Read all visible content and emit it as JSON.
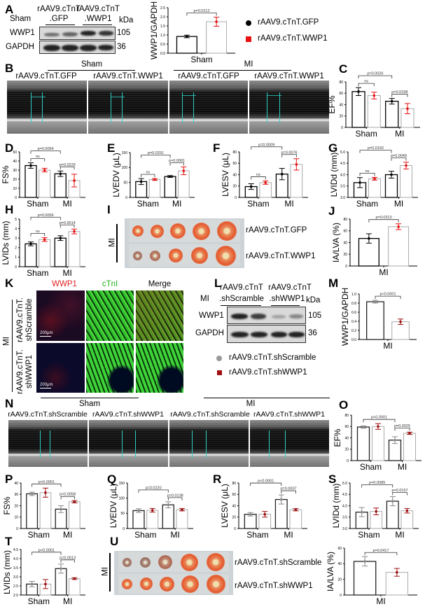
{
  "letters": {
    "A": "A",
    "B": "B",
    "C": "C",
    "D": "D",
    "E": "E",
    "F": "F",
    "G": "G",
    "H": "H",
    "I": "I",
    "J": "J",
    "K": "K",
    "L": "L",
    "M": "M",
    "N": "N",
    "O": "O",
    "P": "P",
    "Q": "Q",
    "R": "R",
    "S": "S",
    "T": "T",
    "U": "U"
  },
  "blotA": {
    "condition": "Sham",
    "groups": [
      {
        "line1": "rAAV9.cTnT",
        "line2": ".GFP"
      },
      {
        "line1": "rAAV9.cTnT",
        "line2": ".WWP1"
      }
    ],
    "unit": "kDa",
    "rows": [
      {
        "protein": "WWP1",
        "kda": "105"
      },
      {
        "protein": "GAPDH",
        "kda": "36"
      }
    ]
  },
  "legend1": {
    "items": [
      {
        "label": "rAAV9.cTnT.GFP",
        "marker": "circle",
        "color": "#000000"
      },
      {
        "label": "rAAV9.cTnT.WWP1",
        "marker": "square",
        "color": "#e81010"
      }
    ]
  },
  "echoB": {
    "groups": [
      "Sham",
      "MI"
    ],
    "labels": [
      "rAAV9.cTnT.GFP",
      "rAAV9.cTnT.WWP1",
      "rAAV9.cTnT.GFP",
      "rAAV9.cTnT.WWP1"
    ]
  },
  "ttcI": {
    "side": "MI",
    "rows": [
      "rAAV9.cTnT.GFP",
      "rAAV9.cTnT.WWP1"
    ]
  },
  "ifK": {
    "columns": [
      "WWP1",
      "cTnI",
      "Merge"
    ],
    "column_colors": [
      "#e02020",
      "#20b020",
      "#000000"
    ],
    "side": "MI",
    "rows": [
      {
        "line1": "rAAV9.cTnT.",
        "line2": "shScramble"
      },
      {
        "line1": "rAAV9.cTnT.",
        "line2": "shWWP1"
      }
    ],
    "scale_bar": "200μm"
  },
  "blotL": {
    "condition": "MI",
    "groups": [
      {
        "line1": "rAAV9.cTnT",
        "line2": ".shScramble"
      },
      {
        "line1": "rAAV9.cTnT",
        "line2": ".shWWP1"
      }
    ],
    "unit": "kDa",
    "rows": [
      {
        "protein": "WWP1",
        "kda": "105"
      },
      {
        "protein": "GAPDH",
        "kda": "36"
      }
    ]
  },
  "legend2": {
    "items": [
      {
        "label": "rAAV9.cTnT.shScramble",
        "marker": "circle",
        "color": "#999999"
      },
      {
        "label": "rAAV9.cTnT.shWWP1",
        "marker": "square",
        "color": "#a01010"
      }
    ]
  },
  "echoN": {
    "groups": [
      "Sham",
      "MI"
    ],
    "labels": [
      "rAAV9.cTnT.shScramble",
      "rAAV9.cTnT.shWWP1",
      "rAAV9.cTnT.shScramble",
      "rAAV9.cTnT.shWWP1"
    ]
  },
  "ttcU": {
    "side": "MI",
    "rows": [
      "rAAV9.cTnT.shScramble",
      "rAAV9.cTnT.shWWP1"
    ]
  },
  "colors": {
    "oe_ctrl": "#000000",
    "oe_treat": "#e81010",
    "kd_ctrl": "#888888",
    "kd_treat": "#a01010",
    "bar_fill": "#ffffff"
  },
  "chart_data": [
    {
      "id": "A",
      "type": "bar",
      "ylabel": "WWP1/GAPDH",
      "ylim": [
        0,
        2.5
      ],
      "yticks": [
        "0.0",
        "0.5",
        "1.0",
        "1.5",
        "2.0",
        "2.5"
      ],
      "categories": [
        "Sham"
      ],
      "series": [
        {
          "name": "rAAV9.cTnT.GFP",
          "values": [
            0.92
          ],
          "sd": [
            0.07
          ]
        },
        {
          "name": "rAAV9.cTnT.WWP1",
          "values": [
            1.73
          ],
          "sd": [
            0.25
          ]
        }
      ],
      "comparisons": [
        {
          "a": 0,
          "b": 1,
          "label": "p=0.0212"
        }
      ]
    },
    {
      "id": "C",
      "type": "bar",
      "ylabel": "EF%",
      "ylim": [
        0,
        80
      ],
      "yticks": [
        "0",
        "20",
        "40",
        "60",
        "80"
      ],
      "categories": [
        "Sham",
        "MI"
      ],
      "series": [
        {
          "name": "rAAV9.cTnT.GFP",
          "values": [
            63,
            46
          ],
          "sd": [
            7,
            5
          ]
        },
        {
          "name": "rAAV9.cTnT.WWP1",
          "values": [
            56,
            33
          ],
          "sd": [
            6,
            9
          ]
        }
      ],
      "comparisons": [
        {
          "a": 0,
          "b": 1,
          "label": "ns"
        },
        {
          "a": 2,
          "b": 3,
          "label": "p=0.0198"
        },
        {
          "a": 0,
          "b": 2,
          "label": "p=0.0026"
        }
      ]
    },
    {
      "id": "D",
      "type": "bar",
      "ylabel": "FS%",
      "ylim": [
        0,
        50
      ],
      "yticks": [
        "0",
        "10",
        "20",
        "30",
        "40",
        "50"
      ],
      "categories": [
        "Sham",
        "MI"
      ],
      "series": [
        {
          "name": "rAAV9.cTnT.GFP",
          "values": [
            35,
            26
          ],
          "sd": [
            3,
            3
          ]
        },
        {
          "name": "rAAV9.cTnT.WWP1",
          "values": [
            30,
            18.5
          ],
          "sd": [
            2,
            7
          ]
        }
      ],
      "comparisons": [
        {
          "a": 0,
          "b": 1,
          "label": "ns"
        },
        {
          "a": 2,
          "b": 3,
          "label": "p=0.0229"
        },
        {
          "a": 0,
          "b": 2,
          "label": "p=0.0054"
        }
      ]
    },
    {
      "id": "E",
      "type": "bar",
      "ylabel": "LVEDV (μL)",
      "ylim": [
        0,
        150
      ],
      "yticks": [
        "0",
        "50",
        "100",
        "150"
      ],
      "categories": [
        "Sham",
        "MI"
      ],
      "series": [
        {
          "name": "rAAV9.cTnT.GFP",
          "values": [
            53,
            70
          ],
          "sd": [
            10,
            3
          ]
        },
        {
          "name": "rAAV9.cTnT.WWP1",
          "values": [
            60,
            89
          ],
          "sd": [
            3,
            13
          ]
        }
      ],
      "comparisons": [
        {
          "a": 0,
          "b": 1,
          "label": "ns"
        },
        {
          "a": 2,
          "b": 3,
          "label": "p=0.0061"
        },
        {
          "a": 0,
          "b": 2,
          "label": "p=0.0291"
        }
      ]
    },
    {
      "id": "F",
      "type": "bar",
      "ylabel": "LVESV (μL)",
      "ylim": [
        0,
        80
      ],
      "yticks": [
        "0",
        "20",
        "40",
        "60",
        "80"
      ],
      "categories": [
        "Sham",
        "MI"
      ],
      "series": [
        {
          "name": "rAAV9.cTnT.GFP",
          "values": [
            19,
            41
          ],
          "sd": [
            5,
            10
          ]
        },
        {
          "name": "rAAV9.cTnT.WWP1",
          "values": [
            26,
            58
          ],
          "sd": [
            3,
            10
          ]
        }
      ],
      "comparisons": [
        {
          "a": 0,
          "b": 1,
          "label": "ns"
        },
        {
          "a": 2,
          "b": 3,
          "label": "p=0.0076"
        },
        {
          "a": 0,
          "b": 2,
          "label": "p=0.0009"
        }
      ]
    },
    {
      "id": "G",
      "type": "bar",
      "ylabel": "LVIDd (mm)",
      "ylim": [
        3,
        5
      ],
      "yticks": [
        "3.0",
        "3.5",
        "4.0",
        "4.5",
        "5.0"
      ],
      "categories": [
        "Sham",
        "MI"
      ],
      "series": [
        {
          "name": "rAAV9.cTnT.GFP",
          "values": [
            3.65,
            4.0
          ],
          "sd": [
            0.22,
            0.15
          ]
        },
        {
          "name": "rAAV9.cTnT.WWP1",
          "values": [
            3.82,
            4.4
          ],
          "sd": [
            0.06,
            0.15
          ]
        }
      ],
      "comparisons": [
        {
          "a": 0,
          "b": 1,
          "label": "ns"
        },
        {
          "a": 2,
          "b": 3,
          "label": "p=0.0049"
        },
        {
          "a": 0,
          "b": 2,
          "label": "p=0.0192"
        }
      ]
    },
    {
      "id": "H",
      "type": "bar",
      "ylabel": "LVIDs (mm)",
      "ylim": [
        0,
        5
      ],
      "yticks": [
        "0",
        "1",
        "2",
        "3",
        "4",
        "5"
      ],
      "categories": [
        "Sham",
        "MI"
      ],
      "series": [
        {
          "name": "rAAV9.cTnT.GFP",
          "values": [
            2.4,
            3.0
          ],
          "sd": [
            0.2,
            0.25
          ]
        },
        {
          "name": "rAAV9.cTnT.WWP1",
          "values": [
            2.85,
            3.7
          ],
          "sd": [
            0.2,
            0.25
          ]
        }
      ],
      "comparisons": [
        {
          "a": 0,
          "b": 1,
          "label": "ns"
        },
        {
          "a": 2,
          "b": 3,
          "label": "p=0.0014"
        },
        {
          "a": 0,
          "b": 2,
          "label": "p=0.0056"
        }
      ]
    },
    {
      "id": "J",
      "type": "bar",
      "ylabel": "IA/LVA (%)",
      "ylim": [
        0,
        80
      ],
      "yticks": [
        "0",
        "20",
        "40",
        "60",
        "80"
      ],
      "categories": [
        "MI"
      ],
      "series": [
        {
          "name": "rAAV9.cTnT.GFP",
          "values": [
            47
          ],
          "sd": [
            8
          ]
        },
        {
          "name": "rAAV9.cTnT.WWP1",
          "values": [
            67
          ],
          "sd": [
            5
          ]
        }
      ],
      "comparisons": [
        {
          "a": 0,
          "b": 1,
          "label": "p=0.0313"
        }
      ]
    },
    {
      "id": "M",
      "type": "bar",
      "ylabel": "WWP1/GAPDH",
      "ylim": [
        0,
        1
      ],
      "yticks": [
        "0.0",
        "0.2",
        "0.4",
        "0.6",
        "0.8",
        "1.0"
      ],
      "categories": [
        "MI"
      ],
      "series": [
        {
          "name": "rAAV9.cTnT.shScramble",
          "values": [
            0.83
          ],
          "sd": [
            0.03
          ]
        },
        {
          "name": "rAAV9.cTnT.shWWP1",
          "values": [
            0.39
          ],
          "sd": [
            0.06
          ]
        }
      ],
      "comparisons": [
        {
          "a": 0,
          "b": 1,
          "label": "p<0.0001"
        }
      ]
    },
    {
      "id": "O",
      "type": "bar",
      "ylabel": "EF%",
      "ylim": [
        0,
        80
      ],
      "yticks": [
        "0",
        "20",
        "40",
        "60",
        "80"
      ],
      "categories": [
        "Sham",
        "MI"
      ],
      "series": [
        {
          "name": "rAAV9.cTnT.shScramble",
          "values": [
            59,
            36
          ],
          "sd": [
            2,
            6
          ]
        },
        {
          "name": "rAAV9.cTnT.shWWP1",
          "values": [
            60,
            48
          ],
          "sd": [
            5,
            2
          ]
        }
      ],
      "comparisons": [
        {
          "a": 2,
          "b": 3,
          "label": "p=0.0025"
        },
        {
          "a": 0,
          "b": 2,
          "label": "p<0.0001"
        }
      ]
    },
    {
      "id": "P",
      "type": "bar",
      "ylabel": "FS%",
      "ylim": [
        0,
        40
      ],
      "yticks": [
        "0",
        "10",
        "20",
        "30",
        "40"
      ],
      "categories": [
        "Sham",
        "MI"
      ],
      "series": [
        {
          "name": "rAAV9.cTnT.shScramble",
          "values": [
            30.5,
            17
          ],
          "sd": [
            1.5,
            3
          ]
        },
        {
          "name": "rAAV9.cTnT.shWWP1",
          "values": [
            31.5,
            23.5
          ],
          "sd": [
            4,
            1
          ]
        }
      ],
      "comparisons": [
        {
          "a": 2,
          "b": 3,
          "label": "p=0.0058"
        },
        {
          "a": 0,
          "b": 2,
          "label": "p<0.0001"
        }
      ]
    },
    {
      "id": "Q",
      "type": "bar",
      "ylabel": "LVEDV (μL)",
      "ylim": [
        0,
        150
      ],
      "yticks": [
        "0",
        "50",
        "100",
        "150"
      ],
      "categories": [
        "Sham",
        "MI"
      ],
      "series": [
        {
          "name": "rAAV9.cTnT.shScramble",
          "values": [
            59,
            78
          ],
          "sd": [
            6,
            10
          ]
        },
        {
          "name": "rAAV9.cTnT.shWWP1",
          "values": [
            60,
            62
          ],
          "sd": [
            6,
            4
          ]
        }
      ],
      "comparisons": [
        {
          "a": 2,
          "b": 3,
          "label": "p=0.0138"
        },
        {
          "a": 0,
          "b": 2,
          "label": "p=0.0220"
        }
      ]
    },
    {
      "id": "R",
      "type": "bar",
      "ylabel": "LVESV (μL)",
      "ylim": [
        0,
        80
      ],
      "yticks": [
        "0",
        "20",
        "40",
        "60",
        "80"
      ],
      "categories": [
        "Sham",
        "MI"
      ],
      "series": [
        {
          "name": "rAAV9.cTnT.shScramble",
          "values": [
            25,
            51
          ],
          "sd": [
            3,
            8
          ]
        },
        {
          "name": "rAAV9.cTnT.shWWP1",
          "values": [
            25,
            33
          ],
          "sd": [
            5,
            2
          ]
        }
      ],
      "comparisons": [
        {
          "a": 2,
          "b": 3,
          "label": "p=0.0007"
        },
        {
          "a": 0,
          "b": 2,
          "label": "p<0.0001"
        }
      ]
    },
    {
      "id": "S",
      "type": "bar",
      "ylabel": "LVIDd (mm)",
      "ylim": [
        3,
        5
      ],
      "yticks": [
        "3.0",
        "3.5",
        "4.0",
        "4.5",
        "5.0"
      ],
      "categories": [
        "Sham",
        "MI"
      ],
      "series": [
        {
          "name": "rAAV9.cTnT.shScramble",
          "values": [
            3.72,
            4.2
          ],
          "sd": [
            0.2,
            0.2
          ]
        },
        {
          "name": "rAAV9.cTnT.shWWP1",
          "values": [
            3.75,
            3.78
          ],
          "sd": [
            0.15,
            0.1
          ]
        }
      ],
      "comparisons": [
        {
          "a": 2,
          "b": 3,
          "label": "p=0.0157"
        },
        {
          "a": 0,
          "b": 2,
          "label": "p=0.0085"
        }
      ]
    },
    {
      "id": "T",
      "type": "bar",
      "ylabel": "LVIDs (mm)",
      "ylim": [
        2,
        4.5
      ],
      "yticks": [
        "2.0",
        "2.5",
        "3.0",
        "3.5",
        "4.0",
        "4.5"
      ],
      "categories": [
        "Sham",
        "MI"
      ],
      "series": [
        {
          "name": "rAAV9.cTnT.shScramble",
          "values": [
            2.6,
            3.45
          ],
          "sd": [
            0.15,
            0.25
          ]
        },
        {
          "name": "rAAV9.cTnT.shWWP1",
          "values": [
            2.6,
            2.9
          ],
          "sd": [
            0.25,
            0.05
          ]
        }
      ],
      "comparisons": [
        {
          "a": 2,
          "b": 3,
          "label": "p=0.0013"
        },
        {
          "a": 0,
          "b": 2,
          "label": "p<0.0001"
        }
      ]
    },
    {
      "id": "U",
      "type": "bar",
      "ylabel": "IA/LVA (%)",
      "ylim": [
        0,
        60
      ],
      "yticks": [
        "0",
        "20",
        "40",
        "60"
      ],
      "categories": [
        "MI"
      ],
      "series": [
        {
          "name": "rAAV9.cTnT.shScramble",
          "values": [
            43
          ],
          "sd": [
            6
          ]
        },
        {
          "name": "rAAV9.cTnT.shWWP1",
          "values": [
            29
          ],
          "sd": [
            5
          ]
        }
      ],
      "comparisons": [
        {
          "a": 0,
          "b": 1,
          "label": "p=0.0417"
        }
      ]
    }
  ]
}
